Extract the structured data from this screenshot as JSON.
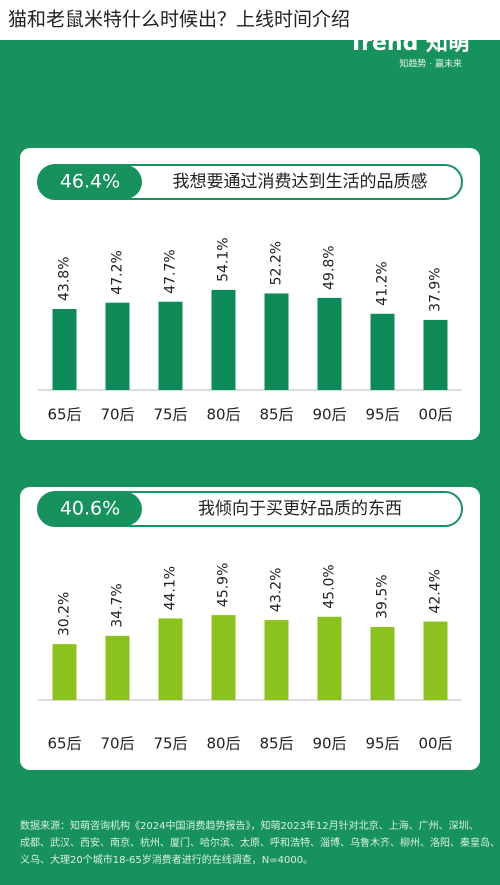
{
  "page_title": "猫和老鼠米特什么时候出？上线时间介绍",
  "brand": {
    "logo": "Trend 知萌",
    "slogan": "知趋势 · 赢未来"
  },
  "chart_data": [
    {
      "type": "bar",
      "headline": "46.4%",
      "title": "我想要通过消费达到生活的品质感",
      "categories": [
        "65后",
        "70后",
        "75后",
        "80后",
        "85后",
        "90后",
        "95后",
        "00后"
      ],
      "values": [
        43.8,
        47.2,
        47.7,
        54.1,
        52.2,
        49.8,
        41.2,
        37.9
      ],
      "value_labels": [
        "43.8%",
        "47.2%",
        "47.7%",
        "54.1%",
        "52.2%",
        "49.8%",
        "41.2%",
        "37.9%"
      ],
      "color": "#0e8a58"
    },
    {
      "type": "bar",
      "headline": "40.6%",
      "title": "我倾向于买更好品质的东西",
      "categories": [
        "65后",
        "70后",
        "75后",
        "80后",
        "85后",
        "90后",
        "95后",
        "00后"
      ],
      "values": [
        30.2,
        34.7,
        44.1,
        45.9,
        43.2,
        45.0,
        39.5,
        42.4
      ],
      "value_labels": [
        "30.2%",
        "34.7%",
        "44.1%",
        "45.9%",
        "43.2%",
        "45.0%",
        "39.5%",
        "42.4%"
      ],
      "color": "#8cc21f"
    }
  ],
  "footer": [
    "数据来源：知萌咨询机构《2024中国消费趋势报告》，知萌2023年12月针对北京、上海、广州、深圳、",
    "成都、武汉、西安、南京、杭州、厦门、哈尔滨、太原、呼和浩特、淄博、乌鲁木齐、柳州、洛阳、秦皇岛、",
    "义乌、大理20个城市18-65岁消费者进行的在线调查，N=4000。"
  ]
}
